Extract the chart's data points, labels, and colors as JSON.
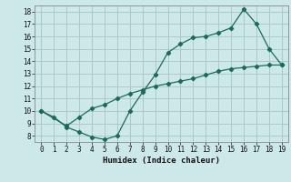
{
  "xlabel": "Humidex (Indice chaleur)",
  "background_color": "#cde8e8",
  "grid_color": "#adc8c8",
  "line_color": "#1a6b5a",
  "xlim": [
    -0.5,
    19.5
  ],
  "ylim": [
    7.5,
    18.5
  ],
  "xticks": [
    0,
    1,
    2,
    3,
    4,
    5,
    6,
    7,
    8,
    9,
    10,
    11,
    12,
    13,
    14,
    15,
    16,
    17,
    18,
    19
  ],
  "yticks": [
    8,
    9,
    10,
    11,
    12,
    13,
    14,
    15,
    16,
    17,
    18
  ],
  "curve1_x": [
    0,
    1,
    2,
    3,
    4,
    5,
    6,
    7,
    8,
    9,
    10,
    11,
    12,
    13,
    14,
    15,
    16,
    17,
    18,
    19
  ],
  "curve1_y": [
    10.0,
    9.5,
    8.7,
    8.3,
    7.9,
    7.7,
    8.0,
    10.0,
    11.5,
    12.9,
    14.7,
    15.4,
    15.9,
    16.0,
    16.3,
    16.7,
    18.2,
    17.0,
    15.0,
    13.7
  ],
  "curve2_x": [
    0,
    2,
    3,
    4,
    5,
    6,
    7,
    8,
    9,
    10,
    11,
    12,
    13,
    14,
    15,
    16,
    17,
    18,
    19
  ],
  "curve2_y": [
    10.0,
    8.8,
    9.5,
    10.2,
    10.5,
    11.0,
    11.4,
    11.7,
    12.0,
    12.2,
    12.4,
    12.6,
    12.9,
    13.2,
    13.4,
    13.5,
    13.6,
    13.7,
    13.7
  ]
}
